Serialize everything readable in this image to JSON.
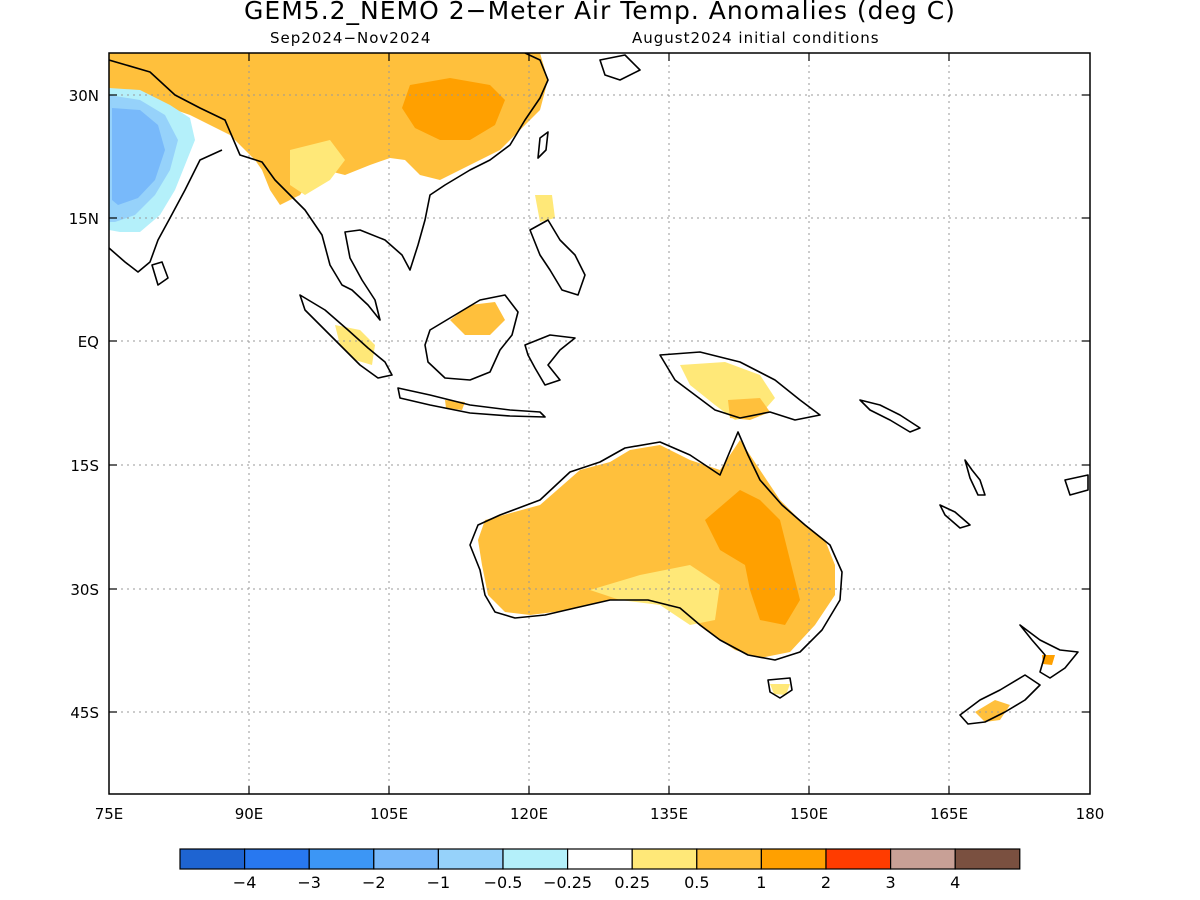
{
  "title": "GEM5.2_NEMO 2−Meter Air Temp. Anomalies (deg C)",
  "subtitle_left": "Sep2024−Nov2024",
  "subtitle_right": "August2024 initial conditions",
  "map": {
    "lon_range": [
      75,
      180
    ],
    "lat_range": [
      -55,
      35
    ],
    "lat_ticks": [
      {
        "value": 30,
        "label": "30N"
      },
      {
        "value": 15,
        "label": "15N"
      },
      {
        "value": 0,
        "label": "EQ"
      },
      {
        "value": -15,
        "label": "15S"
      },
      {
        "value": -30,
        "label": "30S"
      },
      {
        "value": -45,
        "label": "45S"
      }
    ],
    "lon_ticks": [
      {
        "value": 75,
        "label": "75E"
      },
      {
        "value": 90,
        "label": "90E"
      },
      {
        "value": 105,
        "label": "105E"
      },
      {
        "value": 120,
        "label": "120E"
      },
      {
        "value": 135,
        "label": "135E"
      },
      {
        "value": 150,
        "label": "150E"
      },
      {
        "value": 165,
        "label": "165E"
      },
      {
        "value": 180,
        "label": "180"
      }
    ],
    "grid": "dotted"
  },
  "colorbar": {
    "colors": [
      "#1e64d2",
      "#2878f0",
      "#3c96f5",
      "#78b9fa",
      "#96d2fa",
      "#b4f0fa",
      "#ffffff",
      "#ffe878",
      "#ffc03c",
      "#ffa000",
      "#ff3c00",
      "#c8a096",
      "#7a5040"
    ],
    "labels": [
      "−4",
      "−3",
      "−2",
      "−1",
      "−0.5",
      "−0.25",
      "0.25",
      "0.5",
      "1",
      "2",
      "3",
      "4"
    ]
  }
}
